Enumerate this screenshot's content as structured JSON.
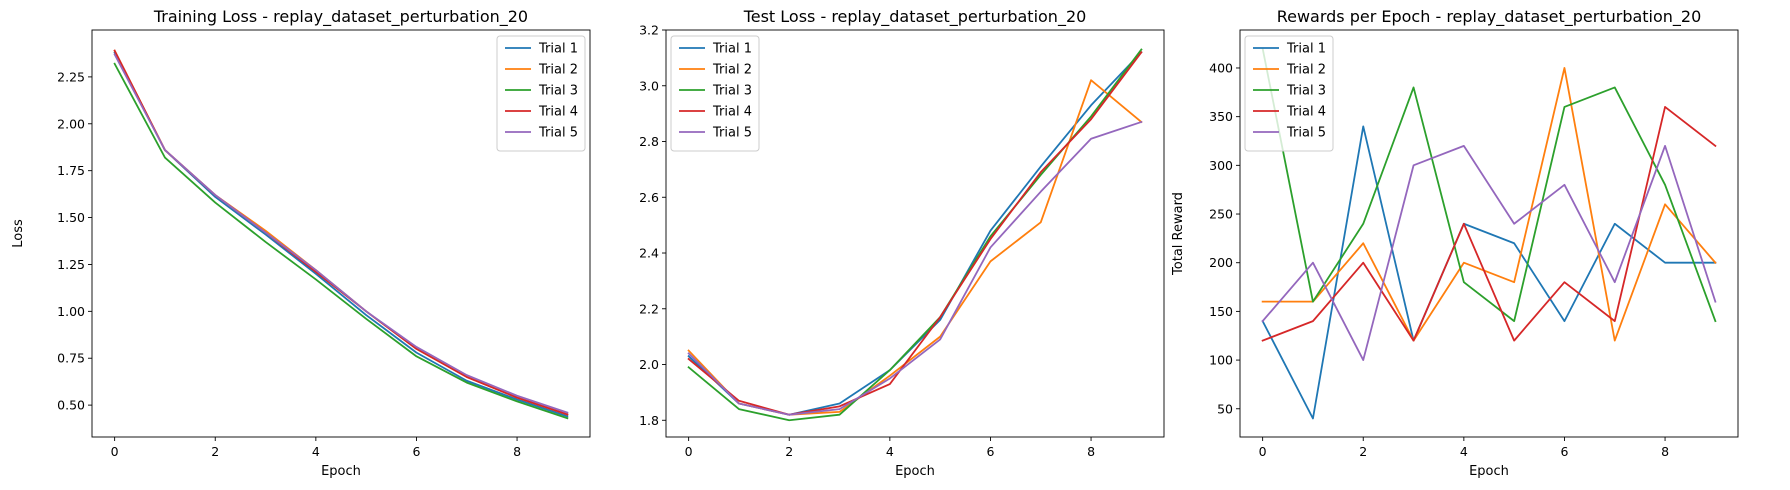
{
  "colors": [
    "#1f77b4",
    "#ff7f0e",
    "#2ca02c",
    "#d62728",
    "#9467bd"
  ],
  "chart_data": [
    {
      "type": "line",
      "title": "Training Loss - replay_dataset_perturbation_20",
      "xlabel": "Epoch",
      "ylabel": "Loss",
      "xlim": [
        -0.45,
        9.45
      ],
      "ylim": [
        0.33,
        2.5
      ],
      "xticks": [
        0,
        2,
        4,
        6,
        8
      ],
      "xtick_labels": [
        "0",
        "2",
        "4",
        "6",
        "8"
      ],
      "yticks": [
        0.5,
        0.75,
        1.0,
        1.25,
        1.5,
        1.75,
        2.0,
        2.25
      ],
      "ytick_labels": [
        "0.50",
        "0.75",
        "1.00",
        "1.25",
        "1.50",
        "1.75",
        "2.00",
        "2.25"
      ],
      "legend": "upper right",
      "x": [
        0,
        1,
        2,
        3,
        4,
        5,
        6,
        7,
        8,
        9
      ],
      "series": [
        {
          "name": "Trial 1",
          "values": [
            2.38,
            1.86,
            1.61,
            1.41,
            1.2,
            0.98,
            0.78,
            0.63,
            0.53,
            0.44
          ]
        },
        {
          "name": "Trial 2",
          "values": [
            2.39,
            1.86,
            1.62,
            1.43,
            1.22,
            1.0,
            0.8,
            0.65,
            0.54,
            0.45
          ]
        },
        {
          "name": "Trial 3",
          "values": [
            2.32,
            1.82,
            1.58,
            1.37,
            1.17,
            0.96,
            0.76,
            0.62,
            0.52,
            0.43
          ]
        },
        {
          "name": "Trial 4",
          "values": [
            2.39,
            1.86,
            1.62,
            1.42,
            1.21,
            1.0,
            0.8,
            0.65,
            0.54,
            0.45
          ]
        },
        {
          "name": "Trial 5",
          "values": [
            2.37,
            1.86,
            1.62,
            1.42,
            1.22,
            1.0,
            0.81,
            0.66,
            0.55,
            0.46
          ]
        }
      ]
    },
    {
      "type": "line",
      "title": "Test Loss - replay_dataset_perturbation_20",
      "xlabel": "Epoch",
      "ylabel": "",
      "xlim": [
        -0.45,
        9.45
      ],
      "ylim": [
        1.74,
        3.2
      ],
      "xticks": [
        0,
        2,
        4,
        6,
        8
      ],
      "xtick_labels": [
        "0",
        "2",
        "4",
        "6",
        "8"
      ],
      "yticks": [
        1.8,
        2.0,
        2.2,
        2.4,
        2.6,
        2.8,
        3.0,
        3.2
      ],
      "ytick_labels": [
        "1.8",
        "2.0",
        "2.2",
        "2.4",
        "2.6",
        "2.8",
        "3.0",
        "3.2"
      ],
      "legend": "upper left",
      "x": [
        0,
        1,
        2,
        3,
        4,
        5,
        6,
        7,
        8,
        9
      ],
      "series": [
        {
          "name": "Trial 1",
          "values": [
            2.03,
            1.86,
            1.82,
            1.86,
            1.98,
            2.16,
            2.48,
            2.71,
            2.93,
            3.12
          ]
        },
        {
          "name": "Trial 2",
          "values": [
            2.05,
            1.86,
            1.82,
            1.83,
            1.96,
            2.1,
            2.37,
            2.51,
            3.02,
            2.87
          ]
        },
        {
          "name": "Trial 3",
          "values": [
            1.99,
            1.84,
            1.8,
            1.82,
            1.98,
            2.17,
            2.46,
            2.68,
            2.89,
            3.13
          ]
        },
        {
          "name": "Trial 4",
          "values": [
            2.02,
            1.87,
            1.82,
            1.85,
            1.93,
            2.17,
            2.45,
            2.69,
            2.88,
            3.12
          ]
        },
        {
          "name": "Trial 5",
          "values": [
            2.04,
            1.86,
            1.82,
            1.84,
            1.95,
            2.09,
            2.42,
            2.62,
            2.81,
            2.87
          ]
        }
      ]
    },
    {
      "type": "line",
      "title": "Rewards per Epoch - replay_dataset_perturbation_20",
      "xlabel": "Epoch",
      "ylabel": "Total Reward",
      "xlim": [
        -0.45,
        9.45
      ],
      "ylim": [
        21,
        439
      ],
      "xticks": [
        0,
        2,
        4,
        6,
        8
      ],
      "xtick_labels": [
        "0",
        "2",
        "4",
        "6",
        "8"
      ],
      "yticks": [
        50,
        100,
        150,
        200,
        250,
        300,
        350,
        400
      ],
      "ytick_labels": [
        "50",
        "100",
        "150",
        "200",
        "250",
        "300",
        "350",
        "400"
      ],
      "legend": "upper left",
      "x": [
        0,
        1,
        2,
        3,
        4,
        5,
        6,
        7,
        8,
        9
      ],
      "series": [
        {
          "name": "Trial 1",
          "values": [
            140,
            40,
            340,
            120,
            240,
            220,
            140,
            240,
            200,
            200
          ]
        },
        {
          "name": "Trial 2",
          "values": [
            160,
            160,
            220,
            120,
            200,
            180,
            400,
            120,
            260,
            200
          ]
        },
        {
          "name": "Trial 3",
          "values": [
            420,
            160,
            240,
            380,
            180,
            140,
            360,
            380,
            280,
            140
          ]
        },
        {
          "name": "Trial 4",
          "values": [
            120,
            140,
            200,
            120,
            240,
            120,
            180,
            140,
            360,
            320
          ]
        },
        {
          "name": "Trial 5",
          "values": [
            140,
            200,
            100,
            300,
            320,
            240,
            280,
            180,
            320,
            160
          ]
        }
      ]
    }
  ]
}
